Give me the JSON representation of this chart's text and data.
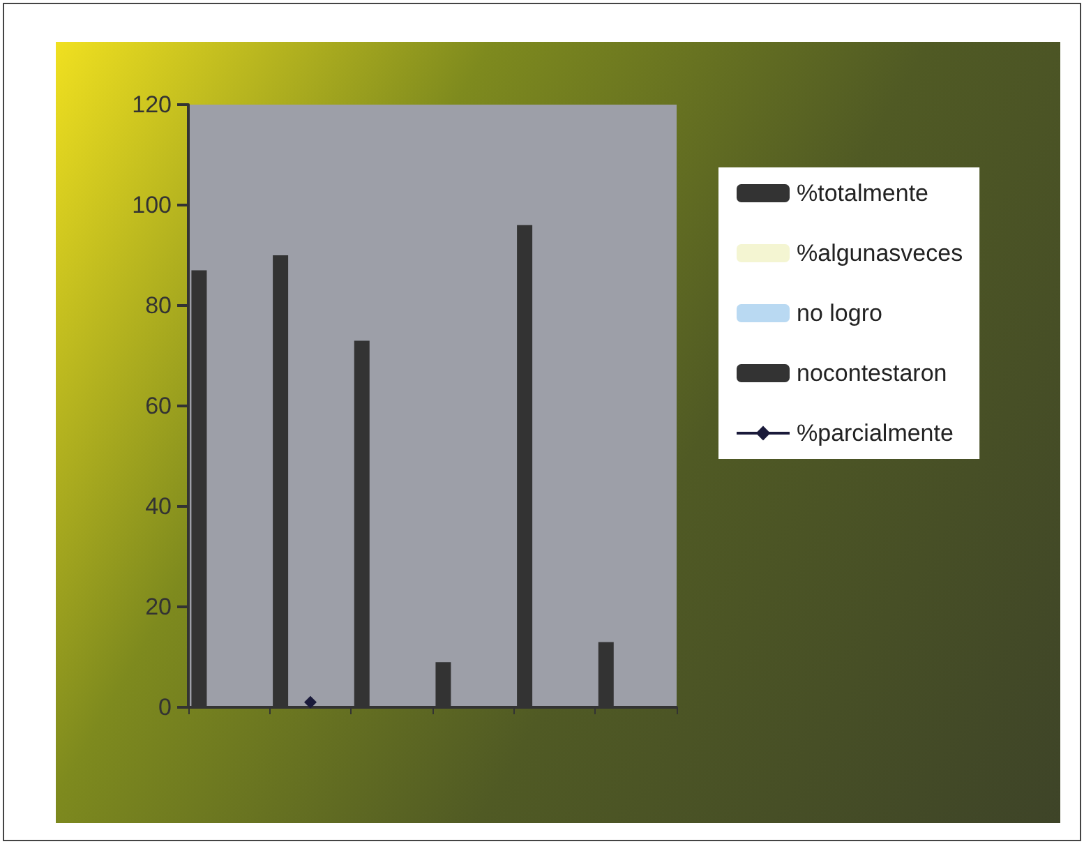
{
  "chart_data": {
    "type": "bar",
    "categories": [
      null,
      null,
      null,
      null,
      null,
      null
    ],
    "series": [
      {
        "name": "%totalmente",
        "color": "#333333",
        "values": [
          87,
          90,
          73,
          9,
          96,
          13
        ]
      },
      {
        "name": "%algunasveces",
        "color": "#f4f5d2",
        "values": [
          0,
          0,
          0,
          0,
          0,
          0
        ]
      },
      {
        "name": "no logro",
        "color": "#b9d9f2",
        "values": [
          0,
          0,
          0,
          0,
          0,
          0
        ]
      },
      {
        "name": "nocontestaron",
        "color": "#333333",
        "values": [
          0,
          0,
          0,
          0,
          0,
          0
        ]
      },
      {
        "name": "%parcialmente",
        "type": "line",
        "color": "#1a1a3a",
        "marker": "diamond",
        "values": [
          null,
          1,
          null,
          null,
          null,
          null
        ]
      }
    ],
    "ylim": [
      0,
      120
    ],
    "yticks": [
      0,
      20,
      40,
      60,
      80,
      100,
      120
    ],
    "grid": false,
    "legend": "right"
  }
}
